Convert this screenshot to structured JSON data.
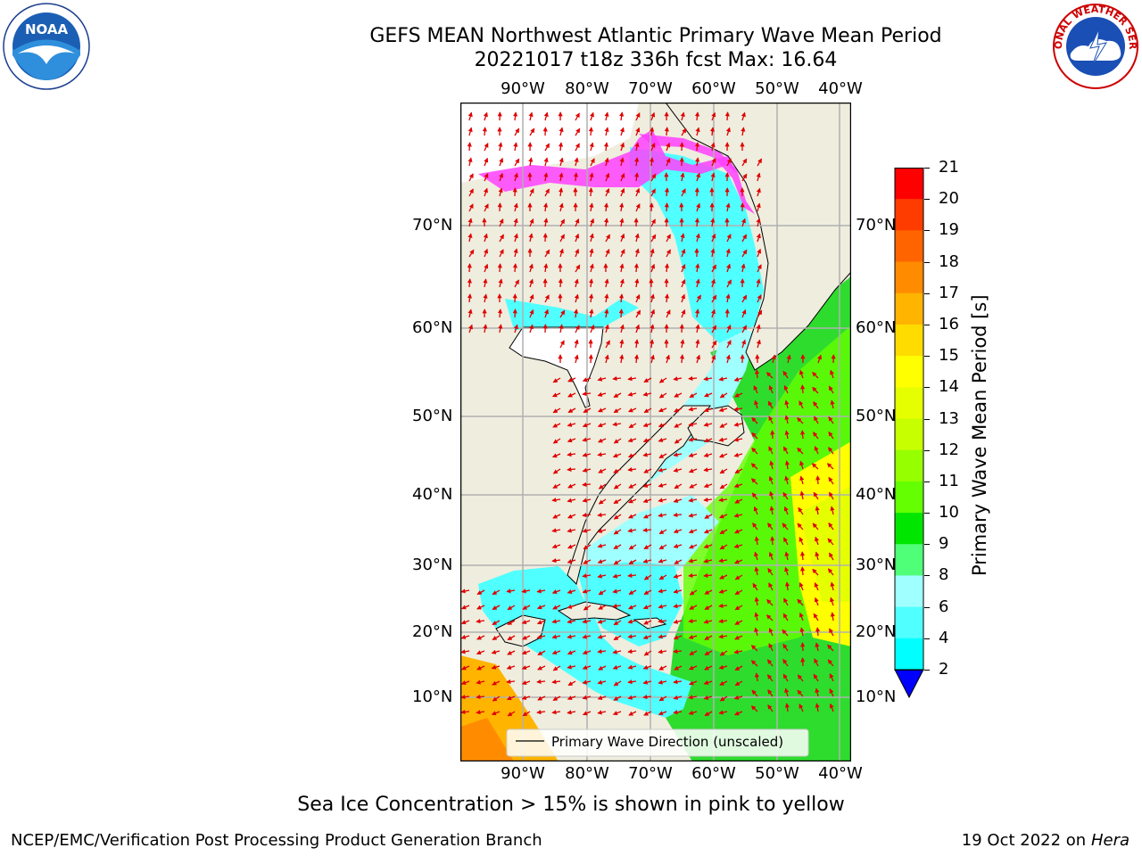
{
  "title": {
    "line1": "GEFS MEAN Northwest Atlantic Primary Wave Mean Period",
    "line2": "20221017 t18z 336h fcst   Max: 16.64"
  },
  "map": {
    "lon_labels": [
      "90°W",
      "80°W",
      "70°W",
      "60°W",
      "50°W",
      "40°W"
    ],
    "lat_labels": [
      "70°N",
      "60°N",
      "50°N",
      "40°N",
      "30°N",
      "20°N",
      "10°N"
    ],
    "legend_label": "Primary Wave Direction (unscaled)",
    "arrow_color": "#e00000",
    "land_color": "#efedde"
  },
  "colorbar": {
    "label": "Primary Wave Mean Period [s]",
    "ticks": [
      "21",
      "20",
      "19",
      "18",
      "17",
      "16",
      "15",
      "14",
      "13",
      "12",
      "11",
      "10",
      "9",
      "8",
      "6",
      "4",
      "2"
    ],
    "colors": [
      "#ff0000",
      "#ff3c00",
      "#ff6400",
      "#ff8c00",
      "#ffb400",
      "#ffdc00",
      "#ffff00",
      "#e6ff00",
      "#c8ff00",
      "#96ff00",
      "#64ff00",
      "#00e600",
      "#50ff78",
      "#a0ffff",
      "#50ffff",
      "#00ffff",
      "#0096ff"
    ],
    "under_color": "#0000ff"
  },
  "caption": "Sea Ice Concentration > 15% is shown in pink to yellow",
  "footer": {
    "left": "NCEP/EMC/Verification Post Processing Product Generation Branch",
    "right_date": "19 Oct 2022 on ",
    "right_host": "Hera"
  },
  "logos": {
    "noaa_text": "NOAA",
    "nws_text": "NATIONAL WEATHER SERVICE"
  }
}
